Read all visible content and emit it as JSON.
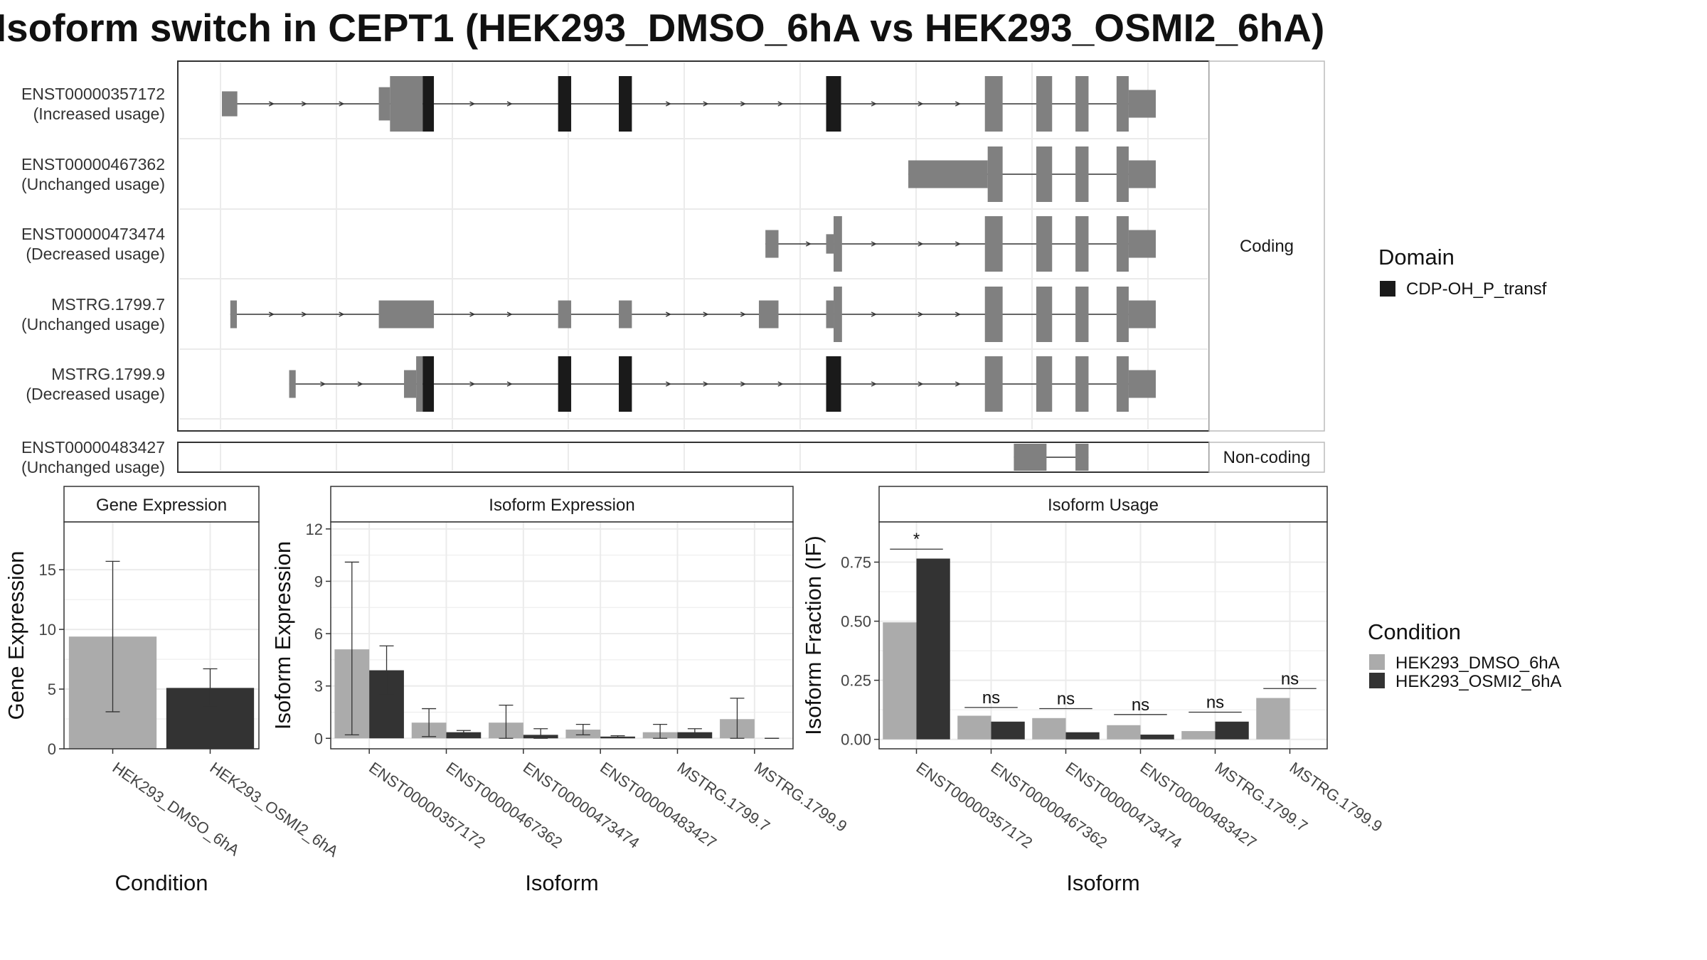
{
  "title": "Isoform switch in CEPT1 (HEK293_DMSO_6hA vs HEK293_OSMI2_6hA)",
  "colors": {
    "utr": "#808080",
    "domain": "#1a1a1a",
    "cond1": "#ababab",
    "cond2": "#333333",
    "panel_border": "#333333",
    "grid": "#ebebeb",
    "strip_border": "#bbbbbb"
  },
  "transcript_plot": {
    "coding_strip": "Coding",
    "noncoding_strip": "Non-coding",
    "transcripts": [
      {
        "id": "ENST00000357172",
        "status": "(Increased usage)",
        "group": "coding",
        "exons": [
          [
            0.0,
            0.0165,
            0.45,
            "utr"
          ],
          [
            0.168,
            0.18,
            0.6,
            "utr"
          ],
          [
            0.18,
            0.215,
            1,
            "utr"
          ],
          [
            0.215,
            0.227,
            1,
            "domain"
          ],
          [
            0.36,
            0.374,
            1,
            "domain"
          ],
          [
            0.425,
            0.439,
            1,
            "domain"
          ],
          [
            0.647,
            0.663,
            1,
            "domain"
          ],
          [
            0.817,
            0.836,
            1,
            "utr"
          ],
          [
            0.872,
            0.889,
            1,
            "utr"
          ],
          [
            0.914,
            0.928,
            1,
            "utr"
          ],
          [
            0.958,
            0.971,
            1,
            "utr"
          ],
          [
            0.971,
            1.0,
            0.5,
            "utr"
          ]
        ],
        "arrows": [
          0.055,
          0.09,
          0.13,
          0.27,
          0.31,
          0.48,
          0.52,
          0.56,
          0.6,
          0.7,
          0.75,
          0.79
        ]
      },
      {
        "id": "ENST00000467362",
        "status": "(Unchanged usage)",
        "group": "coding",
        "exons": [
          [
            0.735,
            0.82,
            0.5,
            "utr"
          ],
          [
            0.82,
            0.836,
            1,
            "utr"
          ],
          [
            0.872,
            0.889,
            1,
            "utr"
          ],
          [
            0.914,
            0.928,
            1,
            "utr"
          ],
          [
            0.958,
            0.971,
            1,
            "utr"
          ],
          [
            0.971,
            1.0,
            0.5,
            "utr"
          ]
        ],
        "arrows": []
      },
      {
        "id": "ENST00000473474",
        "status": "(Decreased usage)",
        "group": "coding",
        "exons": [
          [
            0.582,
            0.596,
            0.5,
            "utr"
          ],
          [
            0.647,
            0.655,
            0.35,
            "utr"
          ],
          [
            0.655,
            0.664,
            1,
            "utr"
          ],
          [
            0.817,
            0.836,
            1,
            "utr"
          ],
          [
            0.872,
            0.889,
            1,
            "utr"
          ],
          [
            0.914,
            0.928,
            1,
            "utr"
          ],
          [
            0.958,
            0.971,
            1,
            "utr"
          ],
          [
            0.971,
            1.0,
            0.5,
            "utr"
          ]
        ],
        "arrows": [
          0.63,
          0.7,
          0.75,
          0.79
        ]
      },
      {
        "id": "MSTRG.1799.7",
        "status": "(Unchanged usage)",
        "group": "coding",
        "exons": [
          [
            0.009,
            0.016,
            0.5,
            "utr"
          ],
          [
            0.168,
            0.227,
            0.5,
            "utr"
          ],
          [
            0.36,
            0.374,
            0.5,
            "utr"
          ],
          [
            0.425,
            0.439,
            0.5,
            "utr"
          ],
          [
            0.575,
            0.596,
            0.5,
            "utr"
          ],
          [
            0.647,
            0.655,
            0.5,
            "utr"
          ],
          [
            0.655,
            0.664,
            1,
            "utr"
          ],
          [
            0.817,
            0.836,
            1,
            "utr"
          ],
          [
            0.872,
            0.889,
            1,
            "utr"
          ],
          [
            0.914,
            0.928,
            1,
            "utr"
          ],
          [
            0.958,
            0.971,
            1,
            "utr"
          ],
          [
            0.971,
            1.0,
            0.5,
            "utr"
          ]
        ],
        "arrows": [
          0.055,
          0.09,
          0.13,
          0.27,
          0.31,
          0.48,
          0.52,
          0.56,
          0.7,
          0.75,
          0.79
        ]
      },
      {
        "id": "MSTRG.1799.9",
        "status": "(Decreased usage)",
        "group": "coding",
        "exons": [
          [
            0.072,
            0.079,
            0.5,
            "utr"
          ],
          [
            0.195,
            0.208,
            0.5,
            "utr"
          ],
          [
            0.208,
            0.215,
            1,
            "utr"
          ],
          [
            0.215,
            0.227,
            1,
            "domain"
          ],
          [
            0.36,
            0.374,
            1,
            "domain"
          ],
          [
            0.425,
            0.439,
            1,
            "domain"
          ],
          [
            0.647,
            0.663,
            1,
            "domain"
          ],
          [
            0.817,
            0.836,
            1,
            "utr"
          ],
          [
            0.872,
            0.889,
            1,
            "utr"
          ],
          [
            0.914,
            0.928,
            1,
            "utr"
          ],
          [
            0.958,
            0.971,
            1,
            "utr"
          ],
          [
            0.971,
            1.0,
            0.5,
            "utr"
          ]
        ],
        "arrows": [
          0.11,
          0.15,
          0.27,
          0.31,
          0.48,
          0.52,
          0.56,
          0.6,
          0.7,
          0.75,
          0.79
        ]
      },
      {
        "id": "ENST00000483427",
        "status": "(Unchanged usage)",
        "group": "noncoding",
        "exons": [
          [
            0.848,
            0.883,
            1,
            "utr"
          ],
          [
            0.914,
            0.928,
            1,
            "utr"
          ]
        ],
        "arrows": []
      }
    ]
  },
  "legend_domain": {
    "title": "Domain",
    "items": [
      {
        "label": "CDP-OH_P_transf",
        "color": "#1a1a1a"
      }
    ]
  },
  "legend_condition": {
    "title": "Condition",
    "items": [
      {
        "label": "HEK293_DMSO_6hA",
        "color": "#ababab"
      },
      {
        "label": "HEK293_OSMI2_6hA",
        "color": "#333333"
      }
    ]
  },
  "chart_data": [
    {
      "type": "bar",
      "strip": "Gene Expression",
      "xlabel": "Condition",
      "ylabel": "Gene Expression",
      "ylim": [
        0,
        19
      ],
      "yticks": [
        0,
        5,
        10,
        15
      ],
      "categories": [
        "HEK293_DMSO_6hA",
        "HEK293_OSMI2_6hA"
      ],
      "values": [
        9.4,
        5.1
      ],
      "errors": [
        [
          3.1,
          15.7
        ],
        [
          3.6,
          6.7
        ]
      ],
      "fill": [
        "#ababab",
        "#333333"
      ]
    },
    {
      "type": "bar",
      "strip": "Isoform Expression",
      "xlabel": "Isoform",
      "ylabel": "Isoform Expression",
      "ylim": [
        -0.6,
        12.4
      ],
      "yticks": [
        0,
        3,
        6,
        9,
        12
      ],
      "categories": [
        "ENST00000357172",
        "ENST00000467362",
        "ENST00000473474",
        "ENST00000483427",
        "MSTRG.1799.7",
        "MSTRG.1799.9"
      ],
      "series": [
        {
          "name": "HEK293_DMSO_6hA",
          "values": [
            5.1,
            0.9,
            0.9,
            0.5,
            0.35,
            1.1
          ],
          "errors": [
            [
              0.2,
              10.1
            ],
            [
              0.1,
              1.7
            ],
            [
              0.0,
              1.9
            ],
            [
              0.2,
              0.8
            ],
            [
              0.0,
              0.8
            ],
            [
              0.0,
              2.3
            ]
          ]
        },
        {
          "name": "HEK293_OSMI2_6hA",
          "values": [
            3.9,
            0.35,
            0.2,
            0.1,
            0.35,
            0.0
          ],
          "errors": [
            [
              2.5,
              5.3
            ],
            [
              0.2,
              0.45
            ],
            [
              0.0,
              0.55
            ],
            [
              0.05,
              0.15
            ],
            [
              0.15,
              0.55
            ],
            [
              0.0,
              0.0
            ]
          ]
        }
      ]
    },
    {
      "type": "bar",
      "strip": "Isoform Usage",
      "xlabel": "Isoform",
      "ylabel": "Isoform Fraction (IF)",
      "ylim": [
        -0.04,
        0.92
      ],
      "yticks": [
        0.0,
        0.25,
        0.5,
        0.75
      ],
      "ytick_labels": [
        "0.00",
        "0.25",
        "0.50",
        "0.75"
      ],
      "categories": [
        "ENST00000357172",
        "ENST00000467362",
        "ENST00000473474",
        "ENST00000483427",
        "MSTRG.1799.7",
        "MSTRG.1799.9"
      ],
      "series": [
        {
          "name": "HEK293_DMSO_6hA",
          "values": [
            0.495,
            0.1,
            0.09,
            0.06,
            0.035,
            0.175
          ]
        },
        {
          "name": "HEK293_OSMI2_6hA",
          "values": [
            0.765,
            0.075,
            0.03,
            0.02,
            0.075,
            0.0
          ]
        }
      ],
      "significance": [
        "*",
        "ns",
        "ns",
        "ns",
        "ns",
        "ns"
      ],
      "significance_y": [
        0.805,
        0.135,
        0.13,
        0.105,
        0.115,
        0.215
      ]
    }
  ]
}
